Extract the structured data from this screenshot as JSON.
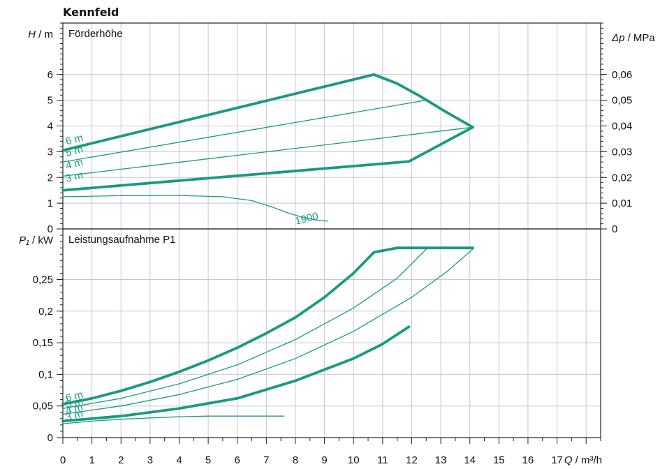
{
  "title": "Kennfeld",
  "colors": {
    "curve": "#1a9a82",
    "axis": "#222222",
    "grid": "#c8c8c8",
    "text": "#111111"
  },
  "chart_data": [
    {
      "type": "line",
      "panel": "head",
      "subtitle": "Förderhöhe",
      "ylabel_var": "H",
      "ylabel_unit": " / m",
      "ylabel2_var": "Δp",
      "ylabel2_unit": " / MPa",
      "xlim": [
        0,
        18.5
      ],
      "ylim": [
        0,
        8
      ],
      "yticks": [
        0,
        1,
        2,
        3,
        4,
        5,
        6
      ],
      "ytick_labels": [
        "0",
        "1",
        "2",
        "3",
        "4",
        "5",
        "6"
      ],
      "y2ticks": [
        0,
        1,
        2,
        3,
        4,
        5,
        6
      ],
      "y2tick_labels": [
        "0",
        "0,01",
        "0,02",
        "0,03",
        "0,04",
        "0,05",
        "0,06"
      ],
      "grid": true,
      "series": [
        {
          "name": "6 m",
          "bold": true,
          "label_at": [
            0.1,
            3.4
          ],
          "points": [
            [
              0,
              3.05
            ],
            [
              10.7,
              6.0
            ],
            [
              11.5,
              5.65
            ],
            [
              12.3,
              5.15
            ],
            [
              13.1,
              4.6
            ],
            [
              14.1,
              3.95
            ]
          ]
        },
        {
          "name": "5 m",
          "bold": false,
          "label_at": [
            0.1,
            2.95
          ],
          "points": [
            [
              0,
              2.6
            ],
            [
              12.5,
              5.0
            ]
          ]
        },
        {
          "name": "4 m",
          "bold": false,
          "label_at": [
            0.1,
            2.45
          ],
          "points": [
            [
              0,
              2.05
            ],
            [
              14.1,
              3.95
            ]
          ]
        },
        {
          "name": "3 m",
          "bold": true,
          "label_at": [
            0.1,
            1.95
          ],
          "points": [
            [
              0,
              1.5
            ],
            [
              11.9,
              2.62
            ],
            [
              14.1,
              3.95
            ]
          ]
        },
        {
          "name": "1900",
          "bold": false,
          "label_at": [
            8.0,
            0.3
          ],
          "points": [
            [
              0,
              1.25
            ],
            [
              2,
              1.29
            ],
            [
              4,
              1.3
            ],
            [
              5.5,
              1.25
            ],
            [
              6.5,
              1.1
            ],
            [
              7.2,
              0.85
            ],
            [
              7.8,
              0.6
            ],
            [
              8.2,
              0.47
            ],
            [
              8.7,
              0.35
            ],
            [
              9.1,
              0.3
            ]
          ]
        }
      ]
    },
    {
      "type": "line",
      "panel": "power",
      "subtitle": "Leistungsaufnahme P1",
      "ylabel_var": "P₁",
      "ylabel_unit": " / kW",
      "xlabel_var": "Q",
      "xlabel_unit": " / m³/h",
      "xlim": [
        0,
        18.5
      ],
      "ylim": [
        0,
        0.33
      ],
      "x": [
        0,
        1,
        2,
        3,
        4,
        5,
        6,
        7,
        8,
        9,
        10,
        11,
        12,
        13,
        14,
        15,
        16,
        17
      ],
      "xtick_labels": [
        "0",
        "1",
        "2",
        "3",
        "4",
        "5",
        "6",
        "7",
        "8",
        "9",
        "10",
        "11",
        "12",
        "13",
        "14",
        "15",
        "16",
        "17"
      ],
      "yticks": [
        0,
        0.05,
        0.1,
        0.15,
        0.2,
        0.25
      ],
      "ytick_labels": [
        "0",
        "0,05",
        "0,1",
        "0,15",
        "0,2",
        "0,25"
      ],
      "grid": true,
      "series": [
        {
          "name": "6 m",
          "bold": true,
          "label_at": [
            0.1,
            0.062
          ],
          "points": [
            [
              0,
              0.053
            ],
            [
              1,
              0.062
            ],
            [
              2,
              0.074
            ],
            [
              3,
              0.088
            ],
            [
              4,
              0.104
            ],
            [
              5,
              0.122
            ],
            [
              6,
              0.142
            ],
            [
              7,
              0.165
            ],
            [
              8,
              0.19
            ],
            [
              9,
              0.222
            ],
            [
              10,
              0.26
            ],
            [
              10.7,
              0.293
            ],
            [
              11.5,
              0.3
            ],
            [
              14.1,
              0.3
            ]
          ]
        },
        {
          "name": "5 m",
          "bold": false,
          "label_at": [
            0.1,
            0.052
          ],
          "points": [
            [
              0,
              0.046
            ],
            [
              2,
              0.062
            ],
            [
              4,
              0.085
            ],
            [
              6,
              0.115
            ],
            [
              8,
              0.155
            ],
            [
              10,
              0.205
            ],
            [
              11.5,
              0.252
            ],
            [
              12.5,
              0.298
            ]
          ]
        },
        {
          "name": "4 m",
          "bold": false,
          "label_at": [
            0.1,
            0.042
          ],
          "points": [
            [
              0,
              0.037
            ],
            [
              2,
              0.05
            ],
            [
              4,
              0.068
            ],
            [
              6,
              0.092
            ],
            [
              8,
              0.125
            ],
            [
              10,
              0.168
            ],
            [
              12,
              0.222
            ],
            [
              13.2,
              0.262
            ],
            [
              14.1,
              0.298
            ]
          ]
        },
        {
          "name": "3 m",
          "bold": true,
          "label_at": [
            0.1,
            0.032
          ],
          "points": [
            [
              0,
              0.026
            ],
            [
              2,
              0.034
            ],
            [
              4,
              0.046
            ],
            [
              6,
              0.062
            ],
            [
              8,
              0.09
            ],
            [
              10,
              0.125
            ],
            [
              11,
              0.148
            ],
            [
              11.9,
              0.175
            ]
          ]
        },
        {
          "name": "1900",
          "bold": false,
          "label_at": null,
          "points": [
            [
              0,
              0.022
            ],
            [
              1,
              0.026
            ],
            [
              2,
              0.029
            ],
            [
              3,
              0.031
            ],
            [
              4,
              0.033
            ],
            [
              5,
              0.034
            ],
            [
              6,
              0.034
            ],
            [
              7.6,
              0.034
            ]
          ]
        }
      ]
    }
  ]
}
